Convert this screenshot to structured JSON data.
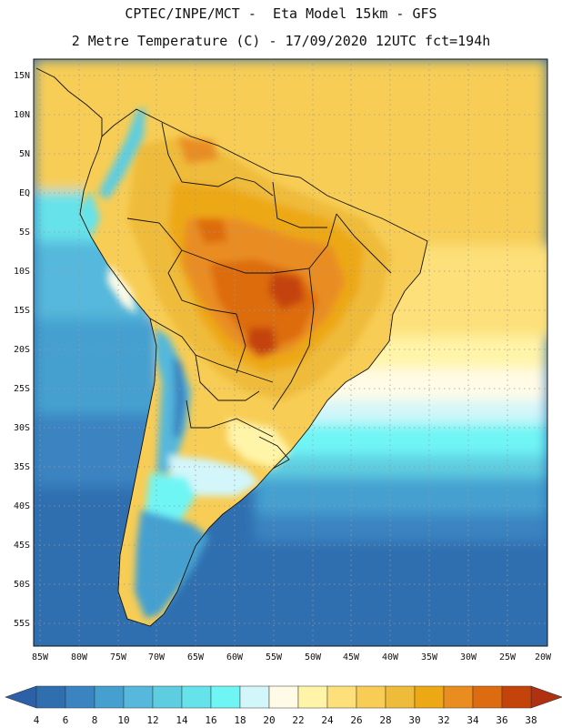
{
  "header": {
    "line1": "CPTEC/INPE/MCT -  Eta Model 15km - GFS",
    "line2": "2 Metre Temperature (C) - 17/09/2020 12UTC fct=194h"
  },
  "map": {
    "lat_labels": [
      "15N",
      "10N",
      "5N",
      "EQ",
      "5S",
      "10S",
      "15S",
      "20S",
      "25S",
      "30S",
      "35S",
      "40S",
      "45S",
      "50S",
      "55S"
    ],
    "lon_labels": [
      "85W",
      "80W",
      "75W",
      "70W",
      "65W",
      "60W",
      "55W",
      "50W",
      "45W",
      "40W",
      "35W",
      "30W",
      "25W",
      "20W"
    ],
    "lat_range": [
      17,
      -58.5
    ],
    "lon_range": [
      -85.5,
      -20
    ]
  },
  "colorbar": {
    "ticks": [
      "4",
      "6",
      "8",
      "10",
      "12",
      "14",
      "16",
      "18",
      "20",
      "22",
      "24",
      "26",
      "28",
      "30",
      "32",
      "34",
      "36",
      "38"
    ],
    "colors": [
      "#2f6fb0",
      "#3a84c1",
      "#45a0d0",
      "#55b8dc",
      "#5fcde0",
      "#66e2ea",
      "#70f5f5",
      "#d2f6fa",
      "#fffbe6",
      "#fff4a8",
      "#fde07a",
      "#f7cd55",
      "#efbb3b",
      "#eda815",
      "#e98d20",
      "#dd6c10",
      "#c4430a"
    ],
    "under_color": "#2c60a8",
    "over_color": "#b03010"
  }
}
